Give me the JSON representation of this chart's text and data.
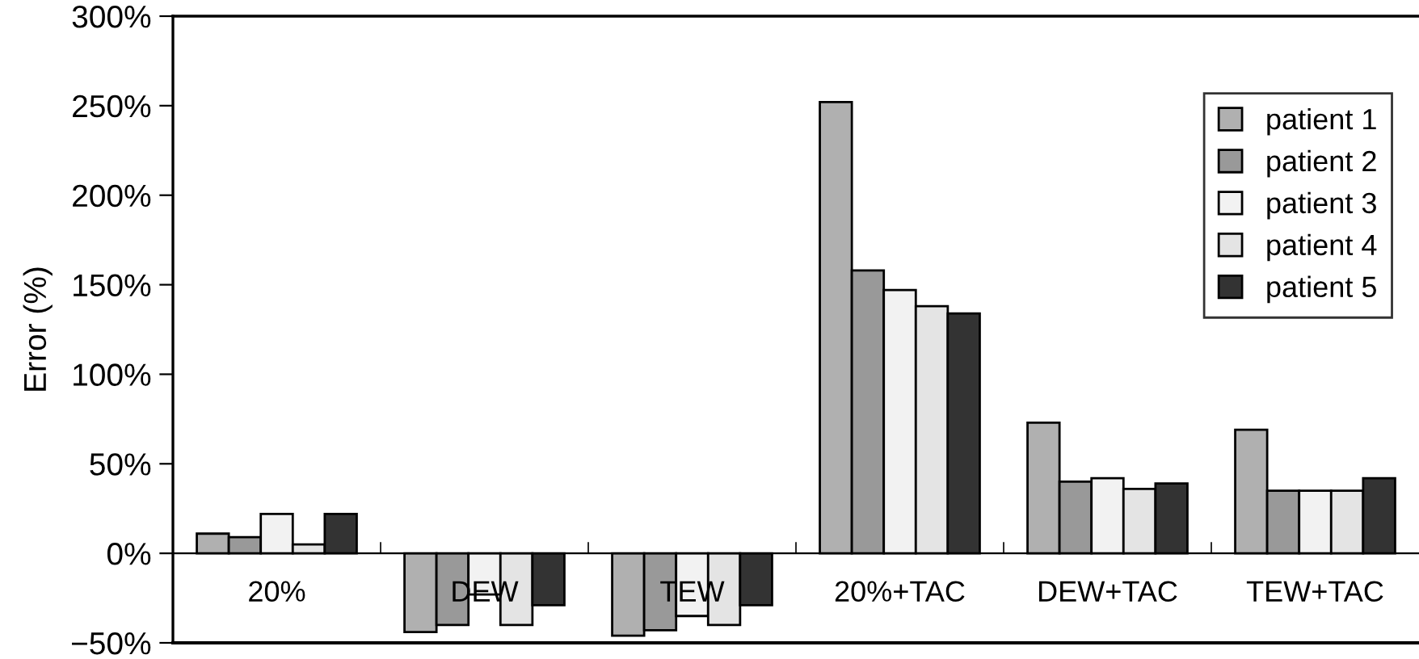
{
  "chart_data": {
    "type": "bar",
    "ylabel": "Error (%)",
    "categories": [
      "20%",
      "DEW",
      "TEW",
      "20%+TAC",
      "DEW+TAC",
      "TEW+TAC"
    ],
    "series": [
      {
        "name": "patient 1",
        "color": "#b0b0b0",
        "values": [
          11,
          -44,
          -46,
          252,
          73,
          69
        ]
      },
      {
        "name": "patient 2",
        "color": "#999999",
        "values": [
          9,
          -40,
          -43,
          158,
          40,
          35
        ]
      },
      {
        "name": "patient 3",
        "color": "#f2f2f2",
        "values": [
          22,
          -23,
          -35,
          147,
          42,
          35
        ]
      },
      {
        "name": "patient 4",
        "color": "#e4e4e4",
        "values": [
          5,
          -40,
          -40,
          138,
          36,
          35
        ]
      },
      {
        "name": "patient 5",
        "color": "#333333",
        "values": [
          22,
          -29,
          -29,
          134,
          39,
          42
        ]
      }
    ],
    "ylim": [
      -50,
      300
    ],
    "yticks": [
      {
        "value": -50,
        "label": "−50%"
      },
      {
        "value": 0,
        "label": "0%"
      },
      {
        "value": 50,
        "label": "50%"
      },
      {
        "value": 100,
        "label": "100%"
      },
      {
        "value": 150,
        "label": "150%"
      },
      {
        "value": 200,
        "label": "200%"
      },
      {
        "value": 250,
        "label": "250%"
      },
      {
        "value": 300,
        "label": "300%"
      }
    ],
    "grid": false,
    "legend": "top right"
  }
}
